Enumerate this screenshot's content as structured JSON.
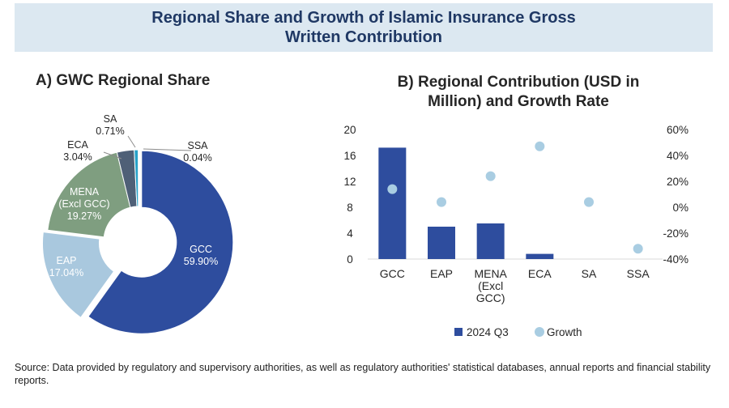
{
  "main_title": "Regional Share and Growth of Islamic Insurance Gross Written Contribution",
  "source": "Source: Data provided by regulatory and supervisory authorities, as well as regulatory authorities' statistical databases, annual reports and financial stability reports.",
  "chart_data": [
    {
      "type": "pie",
      "title": "A) GWC Regional Share",
      "donut": true,
      "slices": [
        {
          "label": "GCC",
          "value": 59.9,
          "display": "59.90%",
          "color": "#2e4d9e"
        },
        {
          "label": "EAP",
          "value": 17.04,
          "display": "17.04%",
          "color": "#a9c8de"
        },
        {
          "label": "MENA (Excl GCC)",
          "label_lines": [
            "MENA",
            "(Excl GCC)"
          ],
          "value": 19.27,
          "display": "19.27%",
          "color": "#7f9e80"
        },
        {
          "label": "ECA",
          "value": 3.04,
          "display": "3.04%",
          "color": "#4f6077"
        },
        {
          "label": "SA",
          "value": 0.71,
          "display": "0.71%",
          "color": "#27a1c8"
        },
        {
          "label": "SSA",
          "value": 0.04,
          "display": "0.04%",
          "color": "#e3b41a"
        }
      ]
    },
    {
      "type": "bar",
      "title": "B) Regional Contribution (USD in Million) and Growth Rate",
      "categories": [
        "GCC",
        "EAP",
        "MENA (Excl GCC)",
        "ECA",
        "SA",
        "SSA"
      ],
      "category_lines": [
        [
          "GCC"
        ],
        [
          "EAP"
        ],
        [
          "MENA",
          "(Excl",
          "GCC)"
        ],
        [
          "ECA"
        ],
        [
          "SA"
        ],
        [
          "SSA"
        ]
      ],
      "series": [
        {
          "name": "2024 Q3",
          "kind": "bar",
          "axis": "left",
          "color": "#2e4d9e",
          "values": [
            17.2,
            5.0,
            5.5,
            0.8,
            0.0,
            0.0
          ]
        },
        {
          "name": "Growth",
          "kind": "scatter",
          "axis": "right",
          "color": "#a9cde2",
          "values": [
            14,
            4,
            24,
            47,
            4,
            -32
          ]
        }
      ],
      "y_left": {
        "min": 0,
        "max": 20,
        "ticks": [
          "0",
          "4",
          "8",
          "12",
          "16",
          "20"
        ]
      },
      "y_right": {
        "min": -40,
        "max": 60,
        "ticks": [
          "-40%",
          "-20%",
          "0%",
          "20%",
          "40%",
          "60%"
        ]
      },
      "legend": "bottom",
      "grid": false
    }
  ]
}
